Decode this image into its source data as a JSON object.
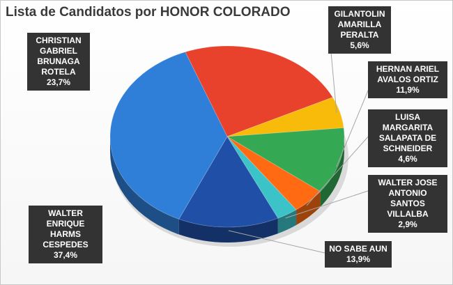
{
  "chart_data": {
    "type": "pie",
    "title": "Lista de Candidatos por HONOR COLORADO",
    "unit": "%",
    "slices": [
      {
        "name": "WALTER ENRIQUE HARMS CESPEDES",
        "value": 37.4,
        "label": "37,4%",
        "color": "#2f7ed8"
      },
      {
        "name": "CHRISTIAN GABRIEL BRUNAGA ROTELA",
        "value": 23.7,
        "label": "23,7%",
        "color": "#e8412c"
      },
      {
        "name": "GILANTOLIN AMARILLA PERALTA",
        "value": 5.6,
        "label": "5,6%",
        "color": "#f8bb0a"
      },
      {
        "name": "HERNAN ARIEL AVALOS ORTIZ",
        "value": 11.9,
        "label": "11,9%",
        "color": "#34a853"
      },
      {
        "name": "LUISA MARGARITA SALAPATA DE SCHNEIDER",
        "value": 4.6,
        "label": "4,6%",
        "color": "#ff6a13"
      },
      {
        "name": "WALTER JOSE ANTONIO SANTOS VILLALBA",
        "value": 2.9,
        "label": "2,9%",
        "color": "#3cc3c8"
      },
      {
        "name": "NO SABE AUN",
        "value": 13.9,
        "label": "13,9%",
        "color": "#1f4fa6"
      }
    ]
  }
}
